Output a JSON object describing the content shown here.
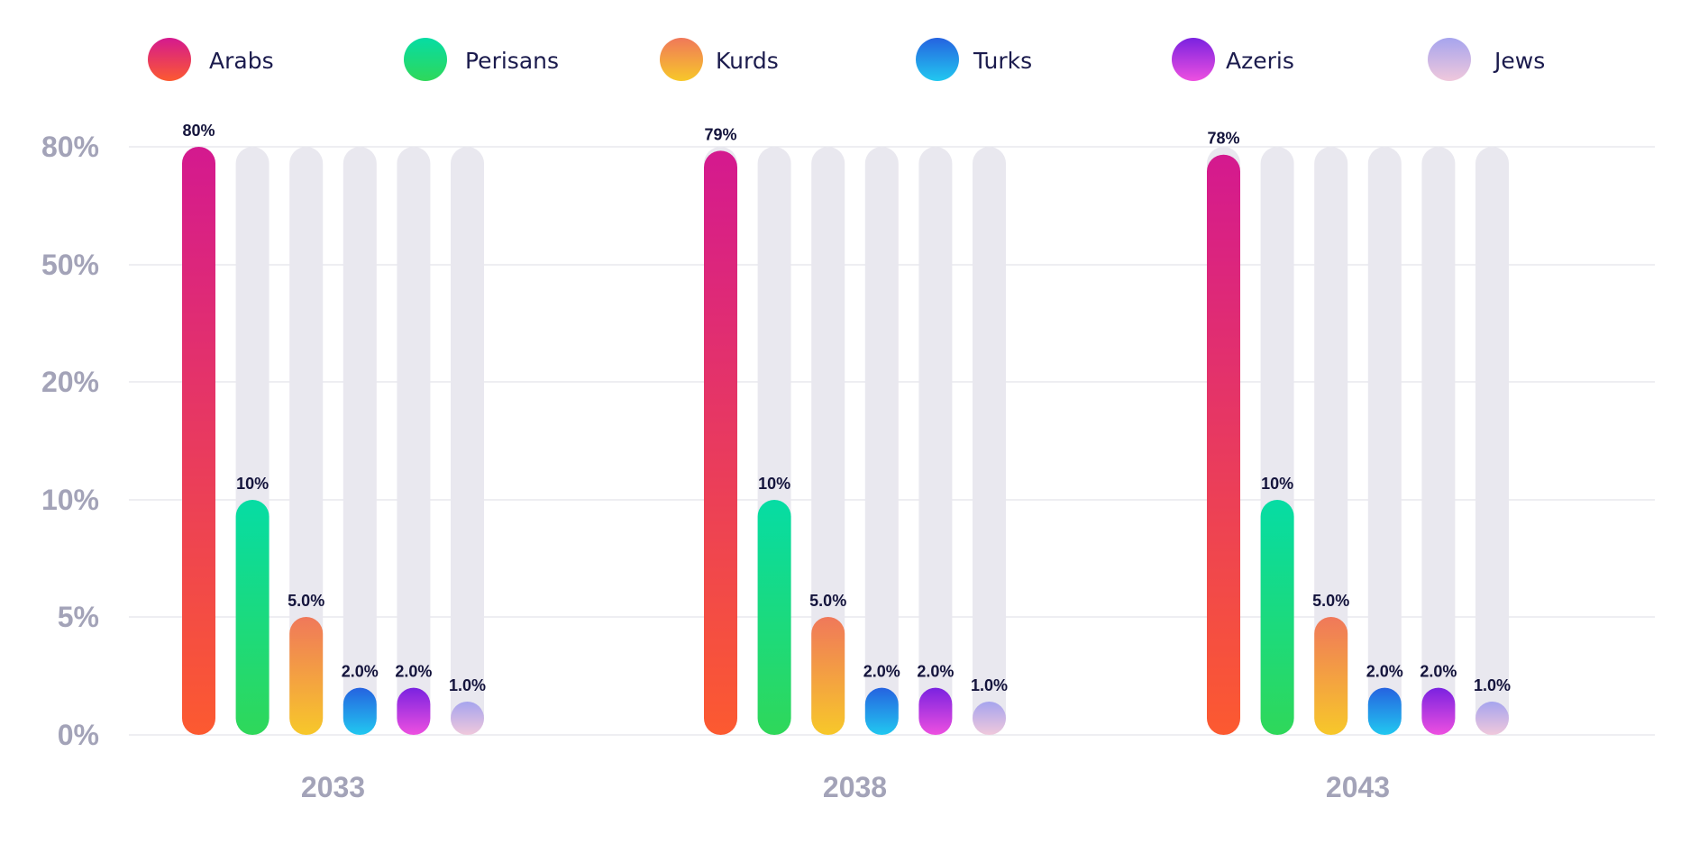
{
  "chart_data": {
    "type": "bar",
    "categories": [
      "2033",
      "2038",
      "2043"
    ],
    "y_ticks": [
      "0%",
      "5%",
      "10%",
      "20%",
      "50%",
      "80%"
    ],
    "series": [
      {
        "name": "Arabs",
        "values": [
          80,
          79,
          78
        ],
        "labels": [
          "80%",
          "79%",
          "78%"
        ],
        "gradient": [
          "#d4198f",
          "#fc5a30"
        ]
      },
      {
        "name": "Perisans",
        "values": [
          10,
          10,
          10
        ],
        "labels": [
          "10%",
          "10%",
          "10%"
        ],
        "gradient": [
          "#06dca4",
          "#2fd85a"
        ]
      },
      {
        "name": "Kurds",
        "values": [
          5,
          5,
          5
        ],
        "labels": [
          "5.0%",
          "5.0%",
          "5.0%"
        ],
        "gradient": [
          "#f0785a",
          "#f7c82a"
        ]
      },
      {
        "name": "Turks",
        "values": [
          2,
          2,
          2
        ],
        "labels": [
          "2.0%",
          "2.0%",
          "2.0%"
        ],
        "gradient": [
          "#2563e0",
          "#22c8f0"
        ]
      },
      {
        "name": "Azeris",
        "values": [
          2,
          2,
          2
        ],
        "labels": [
          "2.0%",
          "2.0%",
          "2.0%"
        ],
        "gradient": [
          "#7a22e0",
          "#ee50e0"
        ]
      },
      {
        "name": "Jews",
        "values": [
          1,
          1,
          1
        ],
        "labels": [
          "1.0%",
          "1.0%",
          "1.0%"
        ],
        "gradient": [
          "#a6a4ee",
          "#f0c8dc"
        ]
      }
    ],
    "track_color": "#e9e8ef",
    "grid": true,
    "legend_position": "top"
  }
}
